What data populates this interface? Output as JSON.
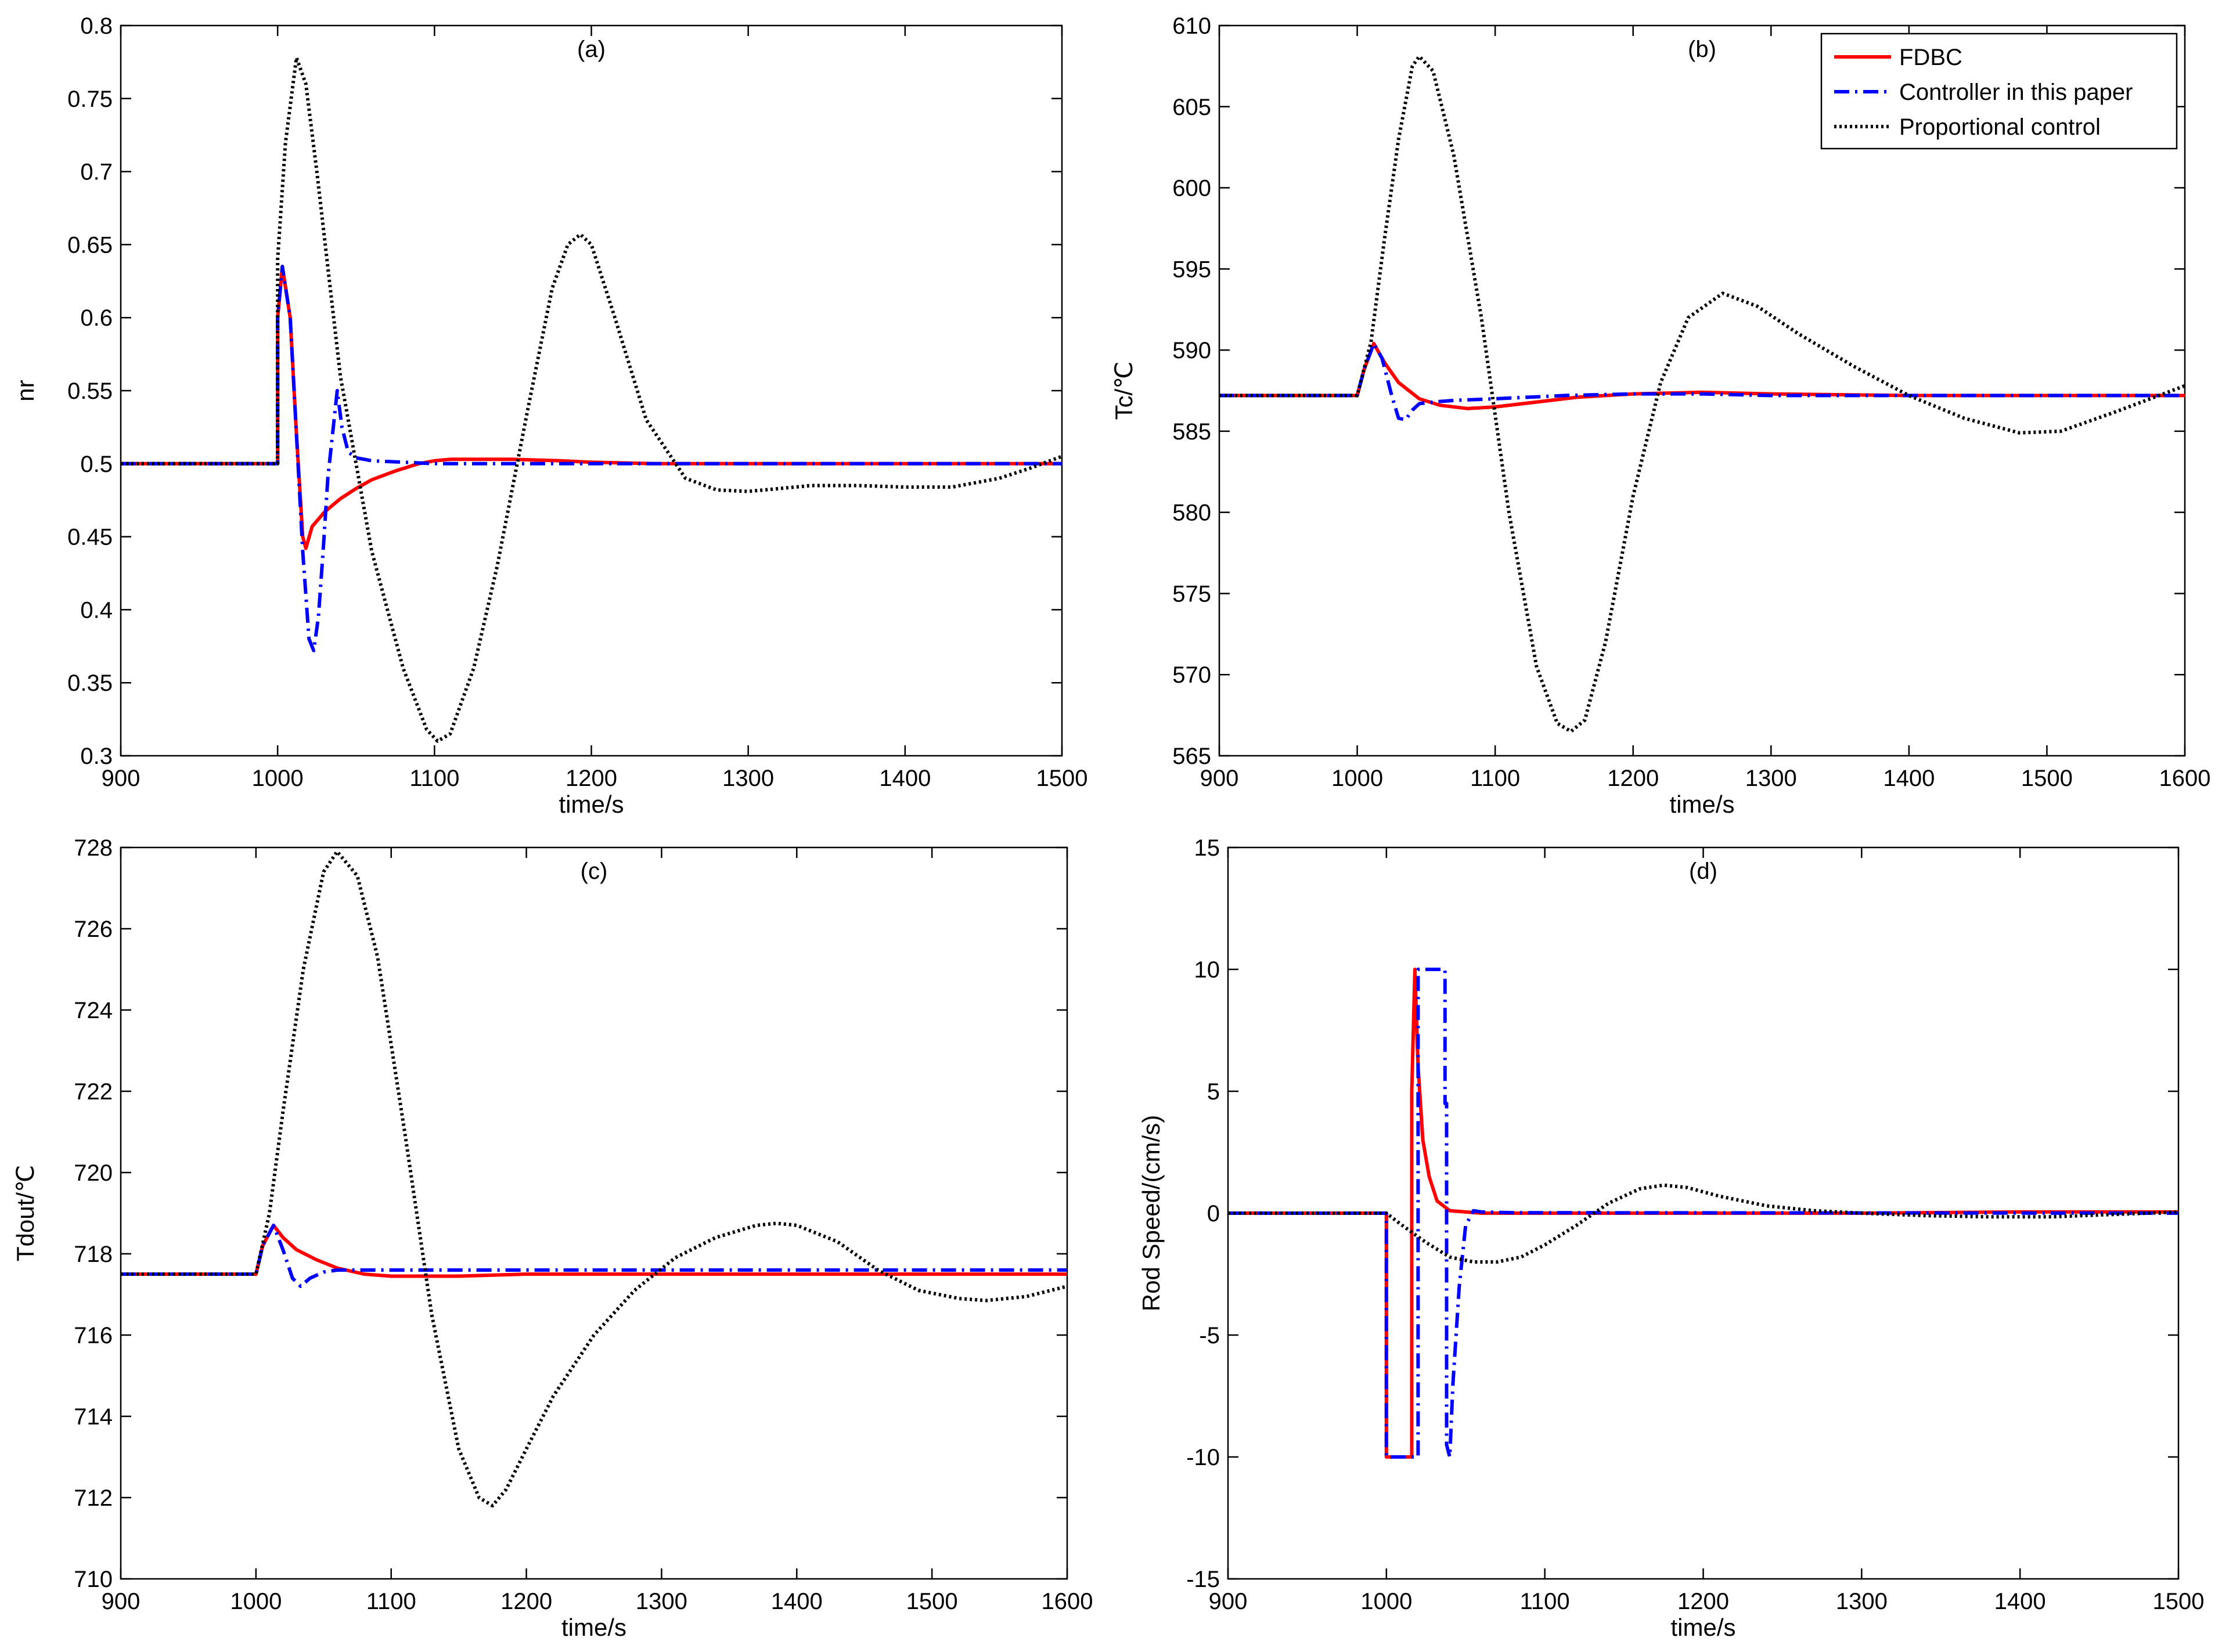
{
  "chart_data": [
    {
      "type": "line",
      "panel_label": "(a)",
      "xlabel": "time/s",
      "ylabel": "nr",
      "xlim": [
        900,
        1500
      ],
      "ylim": [
        0.3,
        0.8
      ],
      "xticks": [
        "900",
        "1000",
        "1100",
        "1200",
        "1300",
        "1400",
        "1500"
      ],
      "yticks": [
        "0.3",
        "0.35",
        "0.4",
        "0.45",
        "0.5",
        "0.55",
        "0.6",
        "0.65",
        "0.7",
        "0.75",
        "0.8"
      ],
      "series": [
        {
          "name": "FDBC",
          "color": "#ff0000",
          "style": "solid",
          "x": [
            900,
            1000,
            1000,
            1003,
            1008,
            1012,
            1016,
            1018,
            1022,
            1030,
            1040,
            1050,
            1060,
            1075,
            1090,
            1100,
            1110,
            1130,
            1150,
            1180,
            1200,
            1240,
            1500
          ],
          "y": [
            0.5,
            0.5,
            0.6,
            0.635,
            0.6,
            0.52,
            0.45,
            0.442,
            0.457,
            0.467,
            0.476,
            0.483,
            0.489,
            0.495,
            0.5,
            0.502,
            0.503,
            0.503,
            0.503,
            0.502,
            0.501,
            0.5,
            0.5
          ]
        },
        {
          "name": "Controller in this paper",
          "color": "#0000ff",
          "style": "dashdot",
          "x": [
            900,
            1000,
            1000,
            1003,
            1008,
            1012,
            1016,
            1020,
            1023,
            1026,
            1029,
            1032,
            1035,
            1038,
            1041,
            1045,
            1050,
            1060,
            1080,
            1100,
            1500
          ],
          "y": [
            0.5,
            0.5,
            0.6,
            0.635,
            0.6,
            0.52,
            0.44,
            0.38,
            0.372,
            0.395,
            0.44,
            0.49,
            0.52,
            0.55,
            0.525,
            0.508,
            0.504,
            0.502,
            0.501,
            0.5,
            0.5
          ]
        },
        {
          "name": "Proportional control",
          "color": "#000000",
          "style": "dotted",
          "x": [
            900,
            1000,
            1000,
            1005,
            1012,
            1018,
            1025,
            1040,
            1060,
            1080,
            1095,
            1102,
            1110,
            1125,
            1140,
            1160,
            1175,
            1185,
            1193,
            1200,
            1215,
            1235,
            1260,
            1280,
            1300,
            1320,
            1340,
            1370,
            1400,
            1430,
            1460,
            1480,
            1500
          ],
          "y": [
            0.5,
            0.5,
            0.64,
            0.72,
            0.778,
            0.76,
            0.7,
            0.56,
            0.44,
            0.36,
            0.318,
            0.31,
            0.315,
            0.36,
            0.43,
            0.54,
            0.62,
            0.65,
            0.657,
            0.65,
            0.6,
            0.53,
            0.49,
            0.482,
            0.481,
            0.483,
            0.485,
            0.485,
            0.484,
            0.484,
            0.49,
            0.497,
            0.505
          ]
        }
      ]
    },
    {
      "type": "line",
      "panel_label": "(b)",
      "xlabel": "time/s",
      "ylabel": "Tc/℃",
      "xlim": [
        900,
        1600
      ],
      "ylim": [
        565,
        610
      ],
      "xticks": [
        "900",
        "1000",
        "1100",
        "1200",
        "1300",
        "1400",
        "1500",
        "1600"
      ],
      "yticks": [
        "565",
        "570",
        "575",
        "580",
        "585",
        "590",
        "595",
        "600",
        "605",
        "610"
      ],
      "legend": {
        "position": "top-right",
        "entries": [
          "FDBC",
          "Controller in this paper",
          "Proportional control"
        ]
      },
      "series": [
        {
          "name": "FDBC",
          "color": "#ff0000",
          "style": "solid",
          "x": [
            900,
            1000,
            1005,
            1012,
            1020,
            1030,
            1045,
            1060,
            1080,
            1100,
            1130,
            1160,
            1200,
            1250,
            1300,
            1400,
            1600
          ],
          "y": [
            587.2,
            587.2,
            588.8,
            590.4,
            589.2,
            588,
            587,
            586.6,
            586.4,
            586.5,
            586.8,
            587.1,
            587.3,
            587.4,
            587.3,
            587.2,
            587.2
          ]
        },
        {
          "name": "Controller in this paper",
          "color": "#0000ff",
          "style": "dashdot",
          "x": [
            900,
            1000,
            1005,
            1012,
            1018,
            1025,
            1030,
            1035,
            1040,
            1045,
            1055,
            1070,
            1100,
            1150,
            1200,
            1250,
            1300,
            1600
          ],
          "y": [
            587.2,
            587.2,
            588.8,
            590.4,
            589.5,
            587.2,
            585.8,
            585.7,
            586.3,
            586.7,
            586.8,
            586.9,
            587,
            587.2,
            587.3,
            587.3,
            587.2,
            587.2
          ]
        },
        {
          "name": "Proportional control",
          "color": "#000000",
          "style": "dotted",
          "x": [
            900,
            1000,
            1010,
            1020,
            1030,
            1040,
            1045,
            1055,
            1070,
            1090,
            1110,
            1130,
            1145,
            1155,
            1165,
            1180,
            1200,
            1220,
            1240,
            1265,
            1290,
            1320,
            1360,
            1400,
            1440,
            1480,
            1510,
            1550,
            1600
          ],
          "y": [
            587.2,
            587.2,
            590.5,
            597,
            603,
            607.5,
            608.1,
            607.2,
            602,
            592,
            580,
            570.5,
            567,
            566.5,
            567.2,
            572,
            581,
            588,
            592,
            593.5,
            592.7,
            591,
            589,
            587.2,
            585.8,
            584.9,
            585,
            586.2,
            587.8
          ]
        }
      ]
    },
    {
      "type": "line",
      "panel_label": "(c)",
      "xlabel": "time/s",
      "ylabel": "Tdout/℃",
      "xlim": [
        900,
        1600
      ],
      "ylim": [
        710,
        728
      ],
      "xticks": [
        "900",
        "1000",
        "1100",
        "1200",
        "1300",
        "1400",
        "1500",
        "1600"
      ],
      "yticks": [
        "710",
        "712",
        "714",
        "716",
        "718",
        "720",
        "722",
        "724",
        "726",
        "728"
      ],
      "series": [
        {
          "name": "FDBC",
          "color": "#ff0000",
          "style": "solid",
          "x": [
            900,
            1000,
            1005,
            1013,
            1020,
            1030,
            1045,
            1060,
            1080,
            1100,
            1150,
            1200,
            1600
          ],
          "y": [
            717.5,
            717.5,
            718.2,
            718.7,
            718.4,
            718.1,
            717.85,
            717.65,
            717.5,
            717.45,
            717.45,
            717.5,
            717.5
          ]
        },
        {
          "name": "Controller in this paper",
          "color": "#0000ff",
          "style": "dashdot",
          "x": [
            900,
            1000,
            1005,
            1013,
            1020,
            1027,
            1033,
            1040,
            1050,
            1060,
            1080,
            1600
          ],
          "y": [
            717.5,
            717.5,
            718.2,
            718.7,
            718.1,
            717.4,
            717.2,
            717.4,
            717.55,
            717.6,
            717.6,
            717.6
          ]
        },
        {
          "name": "Proportional control",
          "color": "#000000",
          "style": "dotted",
          "x": [
            900,
            1000,
            1010,
            1020,
            1035,
            1050,
            1060,
            1075,
            1090,
            1110,
            1130,
            1150,
            1165,
            1175,
            1185,
            1200,
            1220,
            1250,
            1280,
            1310,
            1340,
            1370,
            1385,
            1400,
            1430,
            1460,
            1490,
            1520,
            1540,
            1570,
            1600
          ],
          "y": [
            717.5,
            717.5,
            719,
            721.5,
            725,
            727.4,
            727.9,
            727.3,
            725.3,
            721,
            716.5,
            713.2,
            712,
            711.8,
            712.2,
            713.2,
            714.5,
            716,
            717.1,
            717.9,
            718.4,
            718.7,
            718.75,
            718.7,
            718.3,
            717.6,
            717.1,
            716.9,
            716.85,
            716.95,
            717.2
          ]
        }
      ]
    },
    {
      "type": "line",
      "panel_label": "(d)",
      "xlabel": "time/s",
      "ylabel": "Rod Speed/(cm/s)",
      "xlim": [
        900,
        1500
      ],
      "ylim": [
        -15,
        15
      ],
      "xticks": [
        "900",
        "1000",
        "1100",
        "1200",
        "1300",
        "1400",
        "1500"
      ],
      "yticks": [
        "-15",
        "-10",
        "-5",
        "0",
        "5",
        "10",
        "15"
      ],
      "series": [
        {
          "name": "FDBC",
          "color": "#ff0000",
          "style": "solid",
          "x": [
            900,
            1000,
            1000,
            1016,
            1016,
            1018,
            1020,
            1023,
            1027,
            1032,
            1040,
            1060,
            1100,
            1200,
            1300,
            1400,
            1500
          ],
          "y": [
            0,
            0,
            -10,
            -10,
            5,
            10,
            6,
            3,
            1.5,
            0.5,
            0.1,
            0,
            0,
            0,
            0,
            0.05,
            0.05
          ]
        },
        {
          "name": "Controller in this paper",
          "color": "#0000ff",
          "style": "dashdot",
          "x": [
            900,
            1000,
            1000,
            1020,
            1020,
            1037,
            1037,
            1038,
            1038,
            1040,
            1042,
            1046,
            1050,
            1055,
            1060,
            1080,
            1500
          ],
          "y": [
            0,
            0,
            -10,
            -10,
            10,
            10,
            4.5,
            4.5,
            -9.5,
            -10,
            -7,
            -3,
            -0.5,
            0.1,
            0.05,
            0.02,
            0
          ]
        },
        {
          "name": "Proportional control",
          "color": "#000000",
          "style": "dotted",
          "x": [
            900,
            1000,
            1010,
            1025,
            1040,
            1055,
            1070,
            1085,
            1100,
            1120,
            1140,
            1160,
            1175,
            1190,
            1210,
            1240,
            1270,
            1300,
            1340,
            1380,
            1420,
            1460,
            1500
          ],
          "y": [
            0,
            0,
            -0.5,
            -1.2,
            -1.8,
            -2,
            -2,
            -1.8,
            -1.3,
            -0.5,
            0.4,
            1,
            1.15,
            1.05,
            0.7,
            0.3,
            0.1,
            0,
            -0.1,
            -0.15,
            -0.15,
            -0.05,
            0.05
          ]
        }
      ]
    }
  ]
}
